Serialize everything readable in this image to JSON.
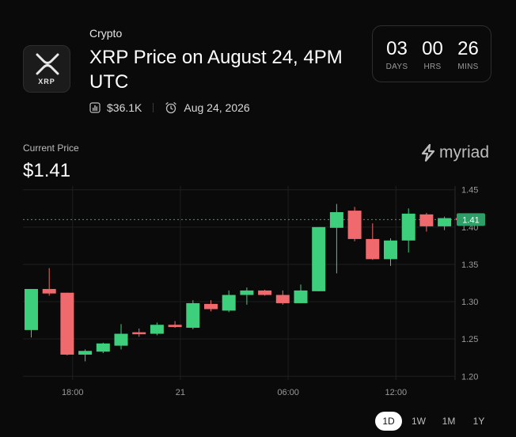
{
  "market": {
    "logo_text": "XRP",
    "category": "Crypto",
    "title": "XRP Price on August 24, 4PM UTC",
    "volume": "$36.1K",
    "date": "Aug 24, 2026"
  },
  "countdown": [
    {
      "value": "03",
      "label": "DAYS"
    },
    {
      "value": "00",
      "label": "HRS"
    },
    {
      "value": "26",
      "label": "MINS"
    }
  ],
  "price": {
    "label": "Current Price",
    "value": "$1.41"
  },
  "brand": "myriad",
  "icons": {
    "volume": "bar-chart-icon",
    "date": "alarm-clock-icon",
    "brand": "myriad-logo-icon"
  },
  "colors": {
    "up": "#3ecf7c",
    "down": "#f06a6d",
    "current": "#2f9e66",
    "grid": "#1f1f1f"
  },
  "ranges": [
    {
      "label": "1D",
      "active": true
    },
    {
      "label": "1W",
      "active": false
    },
    {
      "label": "1M",
      "active": false
    },
    {
      "label": "1Y",
      "active": false
    }
  ],
  "chart_data": {
    "type": "candlestick",
    "ylim": [
      1.195,
      1.455
    ],
    "y_ticks": [
      1.2,
      1.25,
      1.3,
      1.35,
      1.4,
      1.45
    ],
    "y_tick_labels": [
      "1.20",
      "1.25",
      "1.30",
      "1.35",
      "1.40",
      "1.45"
    ],
    "x_ticks": [
      {
        "index": 2.3,
        "label": "18:00"
      },
      {
        "index": 8.3,
        "label": "21"
      },
      {
        "index": 14.3,
        "label": "06:00"
      },
      {
        "index": 20.3,
        "label": "12:00"
      }
    ],
    "current_price": 1.41,
    "current_price_label": "1.41",
    "grid": true,
    "candles": [
      {
        "o": 1.262,
        "h": 1.317,
        "l": 1.252,
        "c": 1.317
      },
      {
        "o": 1.317,
        "h": 1.345,
        "l": 1.308,
        "c": 1.311
      },
      {
        "o": 1.312,
        "h": 1.312,
        "l": 1.228,
        "c": 1.229
      },
      {
        "o": 1.229,
        "h": 1.236,
        "l": 1.22,
        "c": 1.234
      },
      {
        "o": 1.233,
        "h": 1.245,
        "l": 1.231,
        "c": 1.244
      },
      {
        "o": 1.241,
        "h": 1.27,
        "l": 1.236,
        "c": 1.257
      },
      {
        "o": 1.259,
        "h": 1.264,
        "l": 1.253,
        "c": 1.257
      },
      {
        "o": 1.257,
        "h": 1.272,
        "l": 1.255,
        "c": 1.269
      },
      {
        "o": 1.269,
        "h": 1.274,
        "l": 1.265,
        "c": 1.266
      },
      {
        "o": 1.265,
        "h": 1.302,
        "l": 1.263,
        "c": 1.298
      },
      {
        "o": 1.297,
        "h": 1.302,
        "l": 1.287,
        "c": 1.29
      },
      {
        "o": 1.288,
        "h": 1.315,
        "l": 1.286,
        "c": 1.309
      },
      {
        "o": 1.309,
        "h": 1.319,
        "l": 1.296,
        "c": 1.315
      },
      {
        "o": 1.315,
        "h": 1.316,
        "l": 1.308,
        "c": 1.309
      },
      {
        "o": 1.309,
        "h": 1.315,
        "l": 1.296,
        "c": 1.298
      },
      {
        "o": 1.298,
        "h": 1.323,
        "l": 1.298,
        "c": 1.315
      },
      {
        "o": 1.314,
        "h": 1.4,
        "l": 1.314,
        "c": 1.4
      },
      {
        "o": 1.399,
        "h": 1.431,
        "l": 1.338,
        "c": 1.42
      },
      {
        "o": 1.422,
        "h": 1.427,
        "l": 1.381,
        "c": 1.384
      },
      {
        "o": 1.384,
        "h": 1.405,
        "l": 1.356,
        "c": 1.357
      },
      {
        "o": 1.357,
        "h": 1.385,
        "l": 1.348,
        "c": 1.382
      },
      {
        "o": 1.382,
        "h": 1.425,
        "l": 1.366,
        "c": 1.418
      },
      {
        "o": 1.417,
        "h": 1.419,
        "l": 1.394,
        "c": 1.401
      },
      {
        "o": 1.401,
        "h": 1.414,
        "l": 1.396,
        "c": 1.412
      },
      {
        "o": 1.412,
        "h": 1.415,
        "l": 1.408,
        "c": 1.41
      }
    ]
  }
}
